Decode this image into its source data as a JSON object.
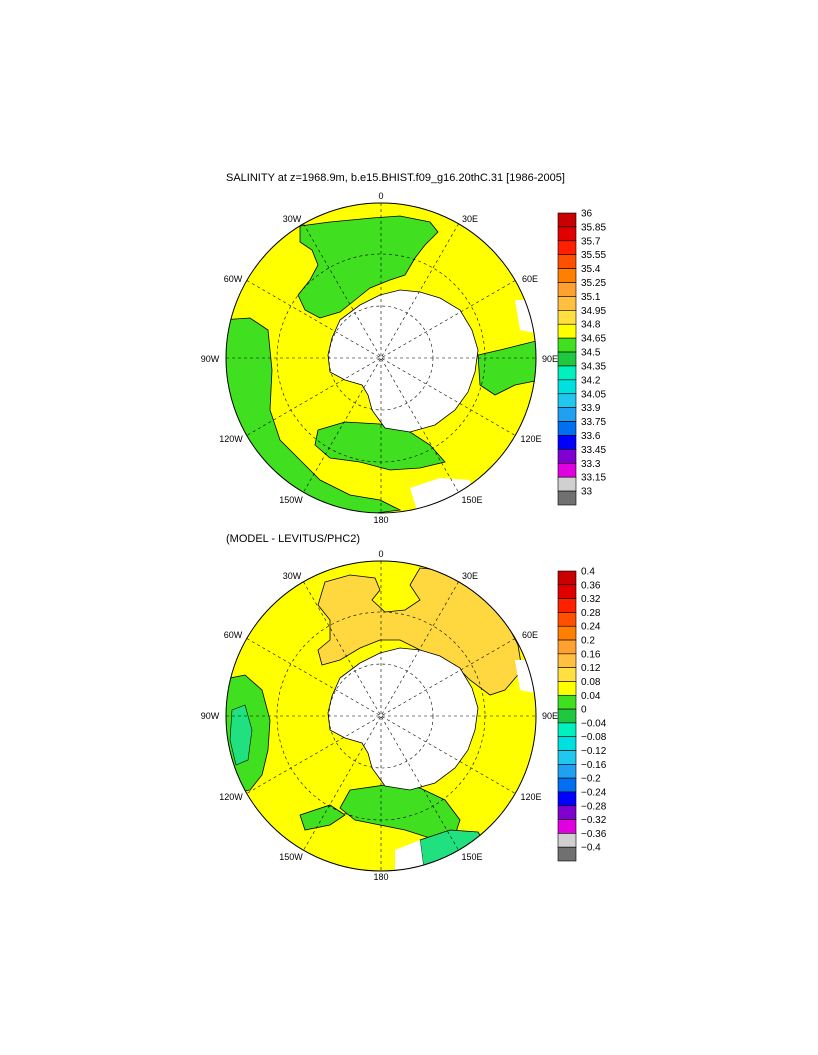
{
  "map1": {
    "title": "SALINITY at z=1968.9m, b.e15.BHIST.f09_g16.20thC.31 [1986-2005]",
    "lon_labels": {
      "top": "0",
      "upper_left": "30W",
      "upper_right": "30E",
      "left_upper": "60W",
      "right_upper": "60E",
      "left": "90W",
      "right": "90E",
      "left_lower": "120W",
      "right_lower": "120E",
      "lower_left": "150W",
      "lower_right": "150E",
      "bottom": "180"
    },
    "colorbar": {
      "labels": [
        "36",
        "35.85",
        "35.7",
        "35.55",
        "35.4",
        "35.25",
        "35.1",
        "34.95",
        "34.8",
        "34.65",
        "34.5",
        "34.35",
        "34.2",
        "34.05",
        "33.9",
        "33.75",
        "33.6",
        "33.45",
        "33.3",
        "33.15",
        "33"
      ],
      "colors": [
        "#c80000",
        "#e00000",
        "#ff2000",
        "#ff5000",
        "#ff8000",
        "#ffa030",
        "#ffc040",
        "#ffe040",
        "#ffff00",
        "#40e020",
        "#20c840",
        "#00f0c0",
        "#00e0e0",
        "#20c8f0",
        "#20a0f0",
        "#0070f0",
        "#0000ff",
        "#8000d0",
        "#e000e0",
        "#d0d0d0",
        "#707070"
      ]
    }
  },
  "map2": {
    "title": "(MODEL - LEVITUS/PHC2)",
    "lon_labels": {
      "top": "0",
      "upper_left": "30W",
      "upper_right": "30E",
      "left_upper": "60W",
      "right_upper": "60E",
      "left": "90W",
      "right": "90E",
      "left_lower": "120W",
      "right_lower": "120E",
      "lower_left": "150W",
      "lower_right": "150E",
      "bottom": "180"
    },
    "colorbar": {
      "labels": [
        "0.4",
        "0.36",
        "0.32",
        "0.28",
        "0.24",
        "0.2",
        "0.16",
        "0.12",
        "0.08",
        "0.04",
        "0",
        "−0.04",
        "−0.08",
        "−0.12",
        "−0.16",
        "−0.2",
        "−0.24",
        "−0.28",
        "−0.32",
        "−0.36",
        "−0.4"
      ],
      "colors": [
        "#c80000",
        "#e00000",
        "#ff2000",
        "#ff5000",
        "#ff8000",
        "#ffa030",
        "#ffc040",
        "#ffe040",
        "#ffff00",
        "#40e020",
        "#20c840",
        "#00f0c0",
        "#00e0e0",
        "#20c8f0",
        "#20a0f0",
        "#0070f0",
        "#0000ff",
        "#8000d0",
        "#e000e0",
        "#d0d0d0",
        "#707070"
      ]
    }
  },
  "colors": {
    "land": "#ffffff",
    "yellow": "#ffff00",
    "green": "#40e020",
    "orange": "#ffd840",
    "teal": "#20e080"
  }
}
